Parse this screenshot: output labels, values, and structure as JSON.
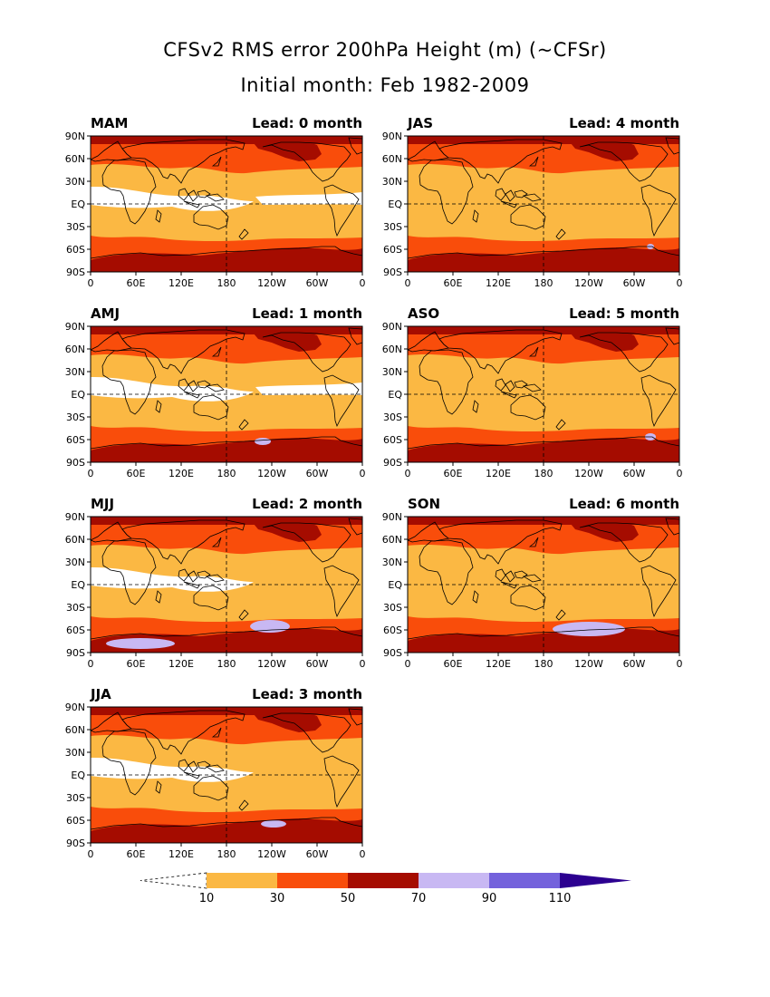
{
  "title": "CFSv2 RMS error 200hPa Height (m) (~CFSr)",
  "subtitle": "Initial month: Feb 1982-2009",
  "lat_labels": [
    "90N",
    "60N",
    "30N",
    "EQ",
    "30S",
    "60S",
    "90S"
  ],
  "lon_labels": [
    "0",
    "60E",
    "120E",
    "180",
    "120W",
    "60W",
    "0"
  ],
  "colors": {
    "below_10": "#ffffff",
    "10_30": "#fbb843",
    "30_50": "#f94d0b",
    "50_70": "#a50c00",
    "70_90": "#c8b8f3",
    "90_110": "#7462dc",
    "above_110": "#2c0090",
    "coast": "#000000"
  },
  "colorbar": {
    "labels": [
      "10",
      "30",
      "50",
      "70",
      "90",
      "110"
    ]
  },
  "panels": [
    {
      "season": "MAM",
      "lead": "Lead: 0 month"
    },
    {
      "season": "JAS",
      "lead": "Lead: 4 month"
    },
    {
      "season": "AMJ",
      "lead": "Lead: 1 month"
    },
    {
      "season": "ASO",
      "lead": "Lead: 5 month"
    },
    {
      "season": "MJJ",
      "lead": "Lead: 2 month"
    },
    {
      "season": "SON",
      "lead": "Lead: 6 month"
    },
    {
      "season": "JJA",
      "lead": "Lead: 3 month"
    }
  ]
}
